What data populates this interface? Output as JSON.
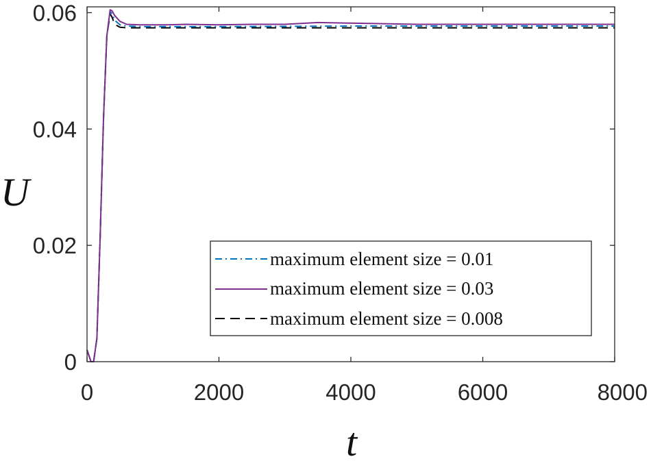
{
  "chart_data": {
    "type": "line",
    "title": "",
    "xlabel": "t",
    "ylabel": "U",
    "xlim": [
      0,
      8000
    ],
    "ylim": [
      0,
      0.061
    ],
    "xticks": [
      0,
      2000,
      4000,
      6000,
      8000
    ],
    "xtick_labels": [
      "0",
      "2000",
      "4000",
      "6000",
      "8000"
    ],
    "yticks": [
      0,
      0.02,
      0.04,
      0.06
    ],
    "ytick_labels": [
      "0",
      "0.02",
      "0.04",
      "0.06"
    ],
    "grid": false,
    "legend_position": "bottom-right",
    "series": [
      {
        "name": "maximum element size = 0.01",
        "color": "#0072BD",
        "dash": "dashdot",
        "x": [
          0,
          60,
          100,
          150,
          200,
          250,
          300,
          350,
          380,
          420,
          500,
          600,
          800,
          1200,
          2000,
          4000,
          6000,
          8000
        ],
        "y": [
          0.002,
          0.0,
          0.0,
          0.004,
          0.022,
          0.042,
          0.056,
          0.0602,
          0.0598,
          0.0587,
          0.0579,
          0.0577,
          0.0576,
          0.0576,
          0.0576,
          0.0577,
          0.0577,
          0.0577
        ]
      },
      {
        "name": "maximum element size = 0.03",
        "color": "#7E2F8E",
        "dash": "solid",
        "x": [
          0,
          60,
          100,
          150,
          200,
          250,
          300,
          350,
          380,
          420,
          500,
          600,
          800,
          1200,
          1500,
          2000,
          2500,
          3000,
          3500,
          4000,
          5000,
          6000,
          7000,
          8000
        ],
        "y": [
          0.002,
          0.0,
          0.0,
          0.004,
          0.022,
          0.042,
          0.056,
          0.0605,
          0.0603,
          0.0595,
          0.0585,
          0.058,
          0.0579,
          0.0579,
          0.058,
          0.0579,
          0.058,
          0.058,
          0.0583,
          0.0582,
          0.058,
          0.058,
          0.058,
          0.058
        ]
      },
      {
        "name": "maximum element size = 0.008",
        "color": "#000000",
        "dash": "dashed",
        "x": [
          0,
          60,
          100,
          150,
          200,
          250,
          300,
          350,
          380,
          420,
          500,
          600,
          800,
          1200,
          2000,
          4000,
          6000,
          8000
        ],
        "y": [
          0.002,
          0.0,
          0.0,
          0.004,
          0.022,
          0.042,
          0.056,
          0.0598,
          0.0592,
          0.058,
          0.0575,
          0.0574,
          0.0574,
          0.0574,
          0.0574,
          0.0574,
          0.0574,
          0.0574
        ]
      }
    ]
  }
}
